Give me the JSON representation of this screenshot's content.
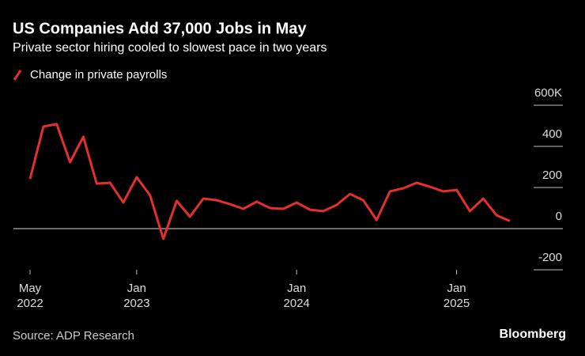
{
  "chart_data": {
    "type": "line",
    "title": "US Companies Add 37,000 Jobs in May",
    "subtitle": "Private sector hiring cooled to slowest pace in two years",
    "source": "Source: ADP Research",
    "brand": "Bloomberg",
    "x": [
      "2022-05",
      "2022-06",
      "2022-07",
      "2022-08",
      "2022-09",
      "2022-10",
      "2022-11",
      "2022-12",
      "2023-01",
      "2023-02",
      "2023-03",
      "2023-04",
      "2023-05",
      "2023-06",
      "2023-07",
      "2023-08",
      "2023-09",
      "2023-10",
      "2023-11",
      "2023-12",
      "2024-01",
      "2024-02",
      "2024-03",
      "2024-04",
      "2024-05",
      "2024-06",
      "2024-07",
      "2024-08",
      "2024-09",
      "2024-10",
      "2024-11",
      "2024-12",
      "2025-01",
      "2025-02",
      "2025-03",
      "2025-04",
      "2025-05"
    ],
    "series": [
      {
        "name": "Change in private payrolls",
        "color": "#e3302c",
        "values": [
          242,
          496,
          508,
          323,
          446,
          219,
          223,
          127,
          250,
          162,
          -50,
          135,
          58,
          146,
          138,
          119,
          96,
          131,
          100,
          96,
          127,
          92,
          85,
          115,
          169,
          138,
          42,
          181,
          196,
          223,
          204,
          181,
          188,
          85,
          146,
          65,
          37
        ]
      }
    ],
    "ylim": [
      -200,
      600
    ],
    "yticks": [
      -200,
      0,
      200,
      400,
      {
        "value": 600,
        "label": "600K"
      }
    ],
    "xticks": [
      {
        "value": "2022-05",
        "month": "May",
        "year": "2022"
      },
      {
        "value": "2023-01",
        "month": "Jan",
        "year": "2023"
      },
      {
        "value": "2024-01",
        "month": "Jan",
        "year": "2024"
      },
      {
        "value": "2025-01",
        "month": "Jan",
        "year": "2025"
      }
    ]
  }
}
